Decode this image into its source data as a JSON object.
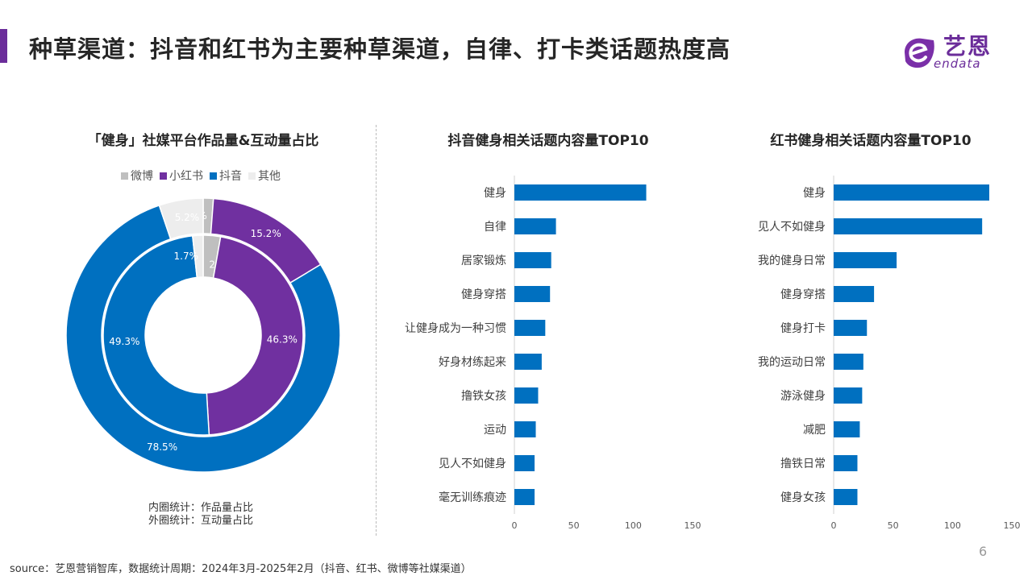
{
  "header": {
    "title": "种草渠道：抖音和红书为主要种草渠道，自律、打卡类话题热度高",
    "logo_text_cn": "艺恩",
    "logo_text_en": "endata",
    "brand_color": "#6b2d9a"
  },
  "legend": {
    "items": [
      {
        "label": "微博",
        "color": "#bfbfbf"
      },
      {
        "label": "小红书",
        "color": "#7030a0"
      },
      {
        "label": "抖音",
        "color": "#0070c0"
      },
      {
        "label": "其他",
        "color": "#ededed"
      }
    ]
  },
  "notes": {
    "inner": "内圈统计：作品量占比",
    "outer": "外圈统计：互动量占比"
  },
  "footer": {
    "source": "source：艺恩营销智库，数据统计周期：2024年3月-2025年2月（抖音、红书、微博等社媒渠道）",
    "page_number": "6"
  },
  "chart_data": [
    {
      "type": "pie",
      "title": "「健身」社媒平台作品量&互动量占比",
      "rings": [
        {
          "name": "内圈统计：作品量占比",
          "slices": [
            {
              "label": "微博",
              "value": 2.8,
              "display": "2.8%",
              "color": "#bfbfbf"
            },
            {
              "label": "小红书",
              "value": 46.3,
              "display": "46.3%",
              "color": "#7030a0"
            },
            {
              "label": "抖音",
              "value": 49.3,
              "display": "49.3%",
              "color": "#0070c0"
            },
            {
              "label": "其他",
              "value": 1.7,
              "display": "1.7%",
              "color": "#ededed"
            }
          ]
        },
        {
          "name": "外圈统计：互动量占比",
          "slices": [
            {
              "label": "微博",
              "value": 1.2,
              "display": "1.2%",
              "color": "#bfbfbf"
            },
            {
              "label": "小红书",
              "value": 15.2,
              "display": "15.2%",
              "color": "#7030a0"
            },
            {
              "label": "抖音",
              "value": 78.5,
              "display": "78.5%",
              "color": "#0070c0"
            },
            {
              "label": "其他",
              "value": 5.2,
              "display": "5.2%",
              "color": "#ededed"
            }
          ]
        }
      ]
    },
    {
      "type": "bar",
      "orientation": "horizontal",
      "title": "抖音健身相关话题内容量TOP10",
      "categories": [
        "健身",
        "自律",
        "居家锻炼",
        "健身穿搭",
        "让健身成为一种习惯",
        "好身材练起来",
        "撸铁女孩",
        "运动",
        "见人不如健身",
        "毫无训练痕迹"
      ],
      "values": [
        111,
        35,
        31,
        30,
        26,
        23,
        20,
        18,
        17,
        17
      ],
      "xlim": [
        0,
        150
      ],
      "xticks": [
        0,
        50,
        100,
        150
      ],
      "color": "#0070c0"
    },
    {
      "type": "bar",
      "orientation": "horizontal",
      "title": "红书健身相关话题内容量TOP10",
      "categories": [
        "健身",
        "见人不如健身",
        "我的健身日常",
        "健身穿搭",
        "健身打卡",
        "我的运动日常",
        "游泳健身",
        "减肥",
        "撸铁日常",
        "健身女孩"
      ],
      "values": [
        131,
        125,
        53,
        34,
        28,
        25,
        24,
        22,
        20,
        20
      ],
      "xlim": [
        0,
        150
      ],
      "xticks": [
        0,
        50,
        100,
        150
      ],
      "color": "#0070c0"
    }
  ]
}
